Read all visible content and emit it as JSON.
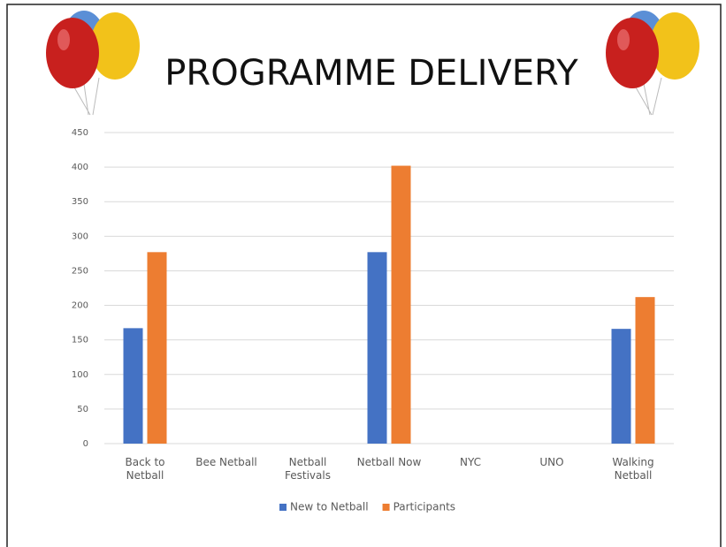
{
  "chart_data": {
    "type": "bar",
    "title": "PROGRAMME DELIVERY",
    "categories": [
      "Back to Netball",
      "Bee Netball",
      "Netball Festivals",
      "Netball Now",
      "NYC",
      "UNO",
      "Walking Netball"
    ],
    "series": [
      {
        "name": "New to Netball",
        "color": "#4472c4",
        "values": [
          167,
          0,
          0,
          277,
          0,
          0,
          166
        ]
      },
      {
        "name": "Participants",
        "color": "#ed7d31",
        "values": [
          277,
          0,
          0,
          402,
          0,
          0,
          212
        ]
      }
    ],
    "ylim": [
      0,
      450
    ],
    "yticks": [
      0,
      50,
      100,
      150,
      200,
      250,
      300,
      350,
      400,
      450
    ],
    "grid": true,
    "legend": "bottom"
  }
}
